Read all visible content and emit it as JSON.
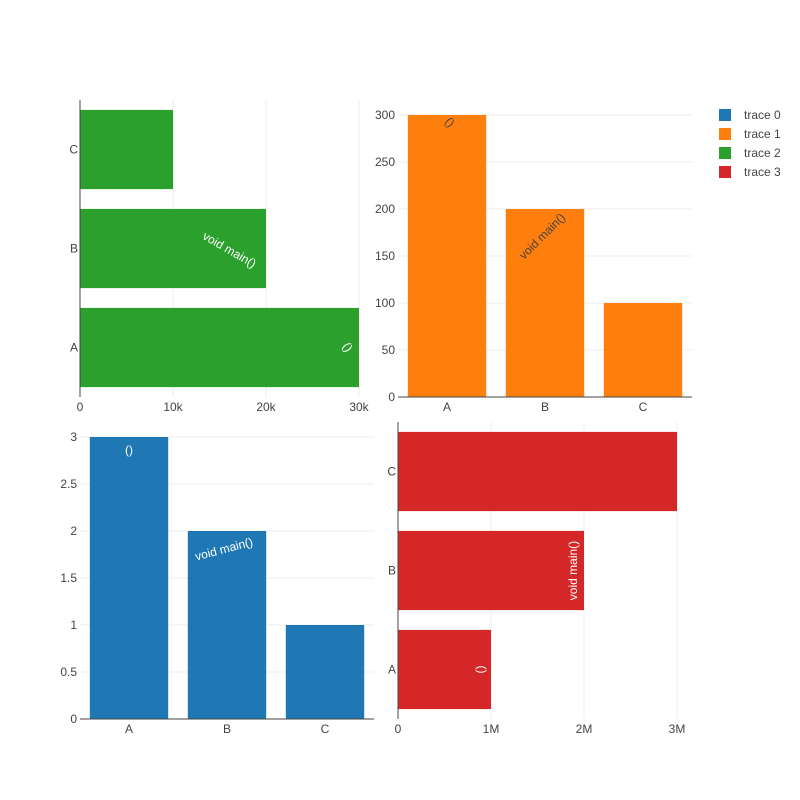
{
  "chart_data": [
    {
      "type": "bar",
      "orientation": "horizontal",
      "series_ref": "trace 2",
      "color": "#2ca02c",
      "categories": [
        "A",
        "B",
        "C"
      ],
      "values": [
        30000,
        20000,
        10000
      ],
      "text": [
        "()",
        "void main()",
        ""
      ],
      "text_angle": [
        55,
        30,
        0
      ],
      "xlim": [
        0,
        30000
      ],
      "xticks": [
        "0",
        "10k",
        "20k",
        "30k"
      ],
      "grid": true
    },
    {
      "type": "bar",
      "orientation": "vertical",
      "series_ref": "trace 1",
      "color": "#ff7f0e",
      "categories": [
        "A",
        "B",
        "C"
      ],
      "values": [
        300,
        200,
        100
      ],
      "text": [
        "()",
        "void main()",
        ""
      ],
      "text_angle": [
        45,
        -45,
        0
      ],
      "ylim": [
        0,
        300
      ],
      "yticks": [
        "0",
        "50",
        "100",
        "150",
        "200",
        "250",
        "300"
      ],
      "grid": true
    },
    {
      "type": "bar",
      "orientation": "vertical",
      "series_ref": "trace 0",
      "color": "#1f77b4",
      "categories": [
        "A",
        "B",
        "C"
      ],
      "values": [
        3,
        2,
        1
      ],
      "text": [
        "()",
        "void main()",
        ""
      ],
      "text_angle": [
        0,
        -15,
        0
      ],
      "ylim": [
        0,
        3
      ],
      "yticks": [
        "0",
        "0.5",
        "1",
        "1.5",
        "2",
        "2.5",
        "3"
      ],
      "grid": true
    },
    {
      "type": "bar",
      "orientation": "horizontal",
      "series_ref": "trace 3",
      "color": "#d62728",
      "categories": [
        "A",
        "B",
        "C"
      ],
      "values": [
        1000000,
        2000000,
        3000000
      ],
      "text": [
        "()",
        "void main()",
        ""
      ],
      "text_angle": [
        -90,
        -90,
        0
      ],
      "xlim": [
        0,
        3000000
      ],
      "xticks": [
        "0",
        "1M",
        "2M",
        "3M"
      ],
      "grid": true
    }
  ],
  "legend": {
    "placement": "top-right",
    "items": [
      {
        "name": "trace 0",
        "color": "#1f77b4"
      },
      {
        "name": "trace 1",
        "color": "#ff7f0e"
      },
      {
        "name": "trace 2",
        "color": "#2ca02c"
      },
      {
        "name": "trace 3",
        "color": "#d62728"
      }
    ]
  }
}
